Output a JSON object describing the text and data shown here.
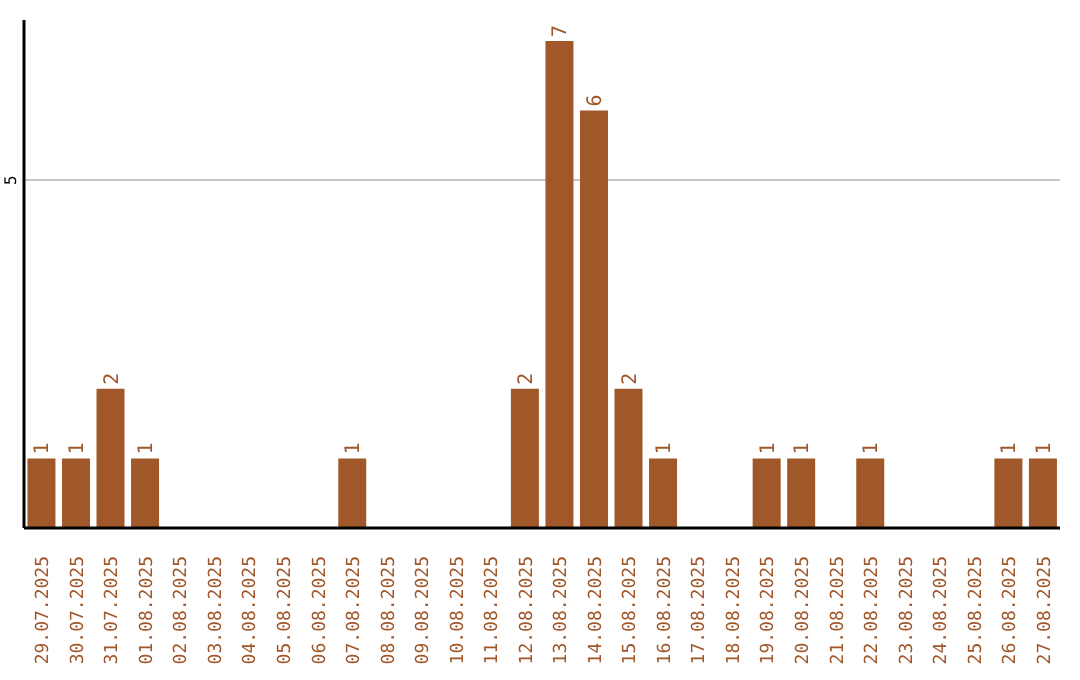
{
  "chart_data": {
    "type": "bar",
    "categories": [
      "29.07.2025",
      "30.07.2025",
      "31.07.2025",
      "01.08.2025",
      "02.08.2025",
      "03.08.2025",
      "04.08.2025",
      "05.08.2025",
      "06.08.2025",
      "07.08.2025",
      "08.08.2025",
      "09.08.2025",
      "10.08.2025",
      "11.08.2025",
      "12.08.2025",
      "13.08.2025",
      "14.08.2025",
      "15.08.2025",
      "16.08.2025",
      "17.08.2025",
      "18.08.2025",
      "19.08.2025",
      "20.08.2025",
      "21.08.2025",
      "22.08.2025",
      "23.08.2025",
      "24.08.2025",
      "25.08.2025",
      "26.08.2025",
      "27.08.2025"
    ],
    "values": [
      1,
      1,
      2,
      1,
      0,
      0,
      0,
      0,
      0,
      1,
      0,
      0,
      0,
      0,
      2,
      7,
      6,
      2,
      1,
      0,
      0,
      1,
      1,
      0,
      1,
      0,
      0,
      0,
      1,
      1
    ],
    "value_labels": [
      "1",
      "1",
      "2",
      "1",
      null,
      null,
      null,
      null,
      null,
      "1",
      null,
      null,
      null,
      null,
      "2",
      "7",
      "6",
      "2",
      "1",
      null,
      null,
      "1",
      "1",
      null,
      "1",
      null,
      null,
      null,
      "1",
      "1"
    ],
    "color": "#a0572a",
    "ylim": [
      0,
      7.3
    ],
    "yticks": [
      5
    ],
    "grid": "y"
  }
}
